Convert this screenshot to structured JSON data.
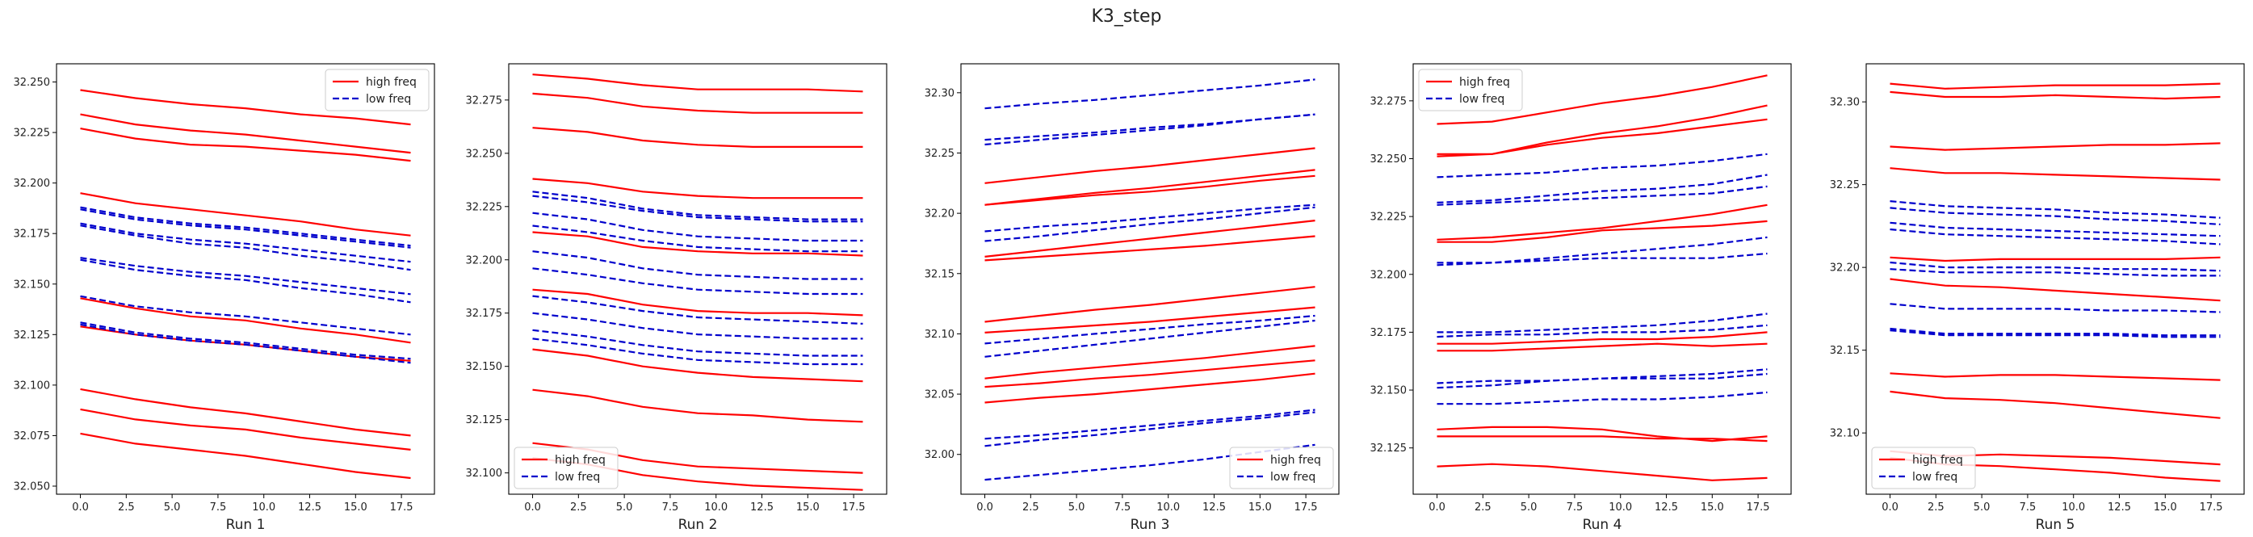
{
  "chart_data": {
    "type": "line",
    "title": "K3_step",
    "x": [
      0,
      3,
      6,
      9,
      12,
      15,
      18
    ],
    "xticks": [
      0.0,
      2.5,
      5.0,
      7.5,
      10.0,
      12.5,
      15.0,
      17.5
    ],
    "xtick_labels": [
      "0.0",
      "2.5",
      "5.0",
      "7.5",
      "10.0",
      "12.5",
      "15.0",
      "17.5"
    ],
    "xlim": [
      -1.3,
      19.3
    ],
    "legend_labels": {
      "high": "high freq",
      "low": "low freq"
    },
    "colors": {
      "high": "#ff0000",
      "low": "#0000cc",
      "axis": "#000000",
      "text": "#222222"
    },
    "panels": [
      {
        "xlabel": "Run 1",
        "ylim": [
          32.046,
          32.259
        ],
        "yticks": [
          32.05,
          32.075,
          32.1,
          32.125,
          32.15,
          32.175,
          32.2,
          32.225,
          32.25
        ],
        "ytick_labels": [
          "32.050",
          "32.075",
          "32.100",
          "32.125",
          "32.150",
          "32.175",
          "32.200",
          "32.225",
          "32.250"
        ],
        "legend_pos": "top-right",
        "high": [
          [
            32.246,
            32.242,
            32.239,
            32.237,
            32.234,
            32.232,
            32.229
          ],
          [
            32.234,
            32.229,
            32.226,
            32.224,
            32.221,
            32.218,
            32.215
          ],
          [
            32.227,
            32.222,
            32.219,
            32.218,
            32.216,
            32.214,
            32.211
          ],
          [
            32.195,
            32.19,
            32.187,
            32.184,
            32.181,
            32.177,
            32.174
          ],
          [
            32.143,
            32.138,
            32.134,
            32.132,
            32.128,
            32.125,
            32.121
          ],
          [
            32.129,
            32.125,
            32.122,
            32.12,
            32.117,
            32.114,
            32.112
          ],
          [
            32.098,
            32.093,
            32.089,
            32.086,
            32.082,
            32.078,
            32.075
          ],
          [
            32.088,
            32.083,
            32.08,
            32.078,
            32.074,
            32.071,
            32.068
          ],
          [
            32.076,
            32.071,
            32.068,
            32.065,
            32.061,
            32.057,
            32.054
          ]
        ],
        "low": [
          [
            32.188,
            32.183,
            32.18,
            32.178,
            32.175,
            32.172,
            32.169
          ],
          [
            32.187,
            32.182,
            32.179,
            32.177,
            32.174,
            32.171,
            32.168
          ],
          [
            32.18,
            32.175,
            32.172,
            32.17,
            32.167,
            32.164,
            32.161
          ],
          [
            32.179,
            32.174,
            32.17,
            32.168,
            32.164,
            32.161,
            32.157
          ],
          [
            32.162,
            32.157,
            32.154,
            32.152,
            32.148,
            32.145,
            32.141
          ],
          [
            32.163,
            32.159,
            32.156,
            32.154,
            32.151,
            32.148,
            32.145
          ],
          [
            32.144,
            32.139,
            32.136,
            32.134,
            32.131,
            32.128,
            32.125
          ],
          [
            32.131,
            32.126,
            32.123,
            32.121,
            32.118,
            32.115,
            32.113
          ],
          [
            32.13,
            32.125,
            32.122,
            32.12,
            32.117,
            32.114,
            32.111
          ]
        ]
      },
      {
        "xlabel": "Run 2",
        "ylim": [
          32.09,
          32.292
        ],
        "yticks": [
          32.1,
          32.125,
          32.15,
          32.175,
          32.2,
          32.225,
          32.25,
          32.275
        ],
        "ytick_labels": [
          "32.100",
          "32.125",
          "32.150",
          "32.175",
          "32.200",
          "32.225",
          "32.250",
          "32.275"
        ],
        "legend_pos": "bottom-left",
        "high": [
          [
            32.287,
            32.285,
            32.282,
            32.28,
            32.28,
            32.28,
            32.279
          ],
          [
            32.278,
            32.276,
            32.272,
            32.27,
            32.269,
            32.269,
            32.269
          ],
          [
            32.262,
            32.26,
            32.256,
            32.254,
            32.253,
            32.253,
            32.253
          ],
          [
            32.238,
            32.236,
            32.232,
            32.23,
            32.229,
            32.229,
            32.229
          ],
          [
            32.213,
            32.211,
            32.206,
            32.204,
            32.203,
            32.203,
            32.202
          ],
          [
            32.186,
            32.184,
            32.179,
            32.176,
            32.175,
            32.175,
            32.174
          ],
          [
            32.158,
            32.155,
            32.15,
            32.147,
            32.145,
            32.144,
            32.143
          ],
          [
            32.139,
            32.136,
            32.131,
            32.128,
            32.127,
            32.125,
            32.124
          ],
          [
            32.114,
            32.111,
            32.106,
            32.103,
            32.102,
            32.101,
            32.1
          ],
          [
            32.107,
            32.104,
            32.099,
            32.096,
            32.094,
            32.093,
            32.092
          ]
        ],
        "low": [
          [
            32.232,
            32.229,
            32.224,
            32.221,
            32.22,
            32.219,
            32.219
          ],
          [
            32.23,
            32.227,
            32.223,
            32.22,
            32.219,
            32.218,
            32.218
          ],
          [
            32.222,
            32.219,
            32.214,
            32.211,
            32.21,
            32.209,
            32.209
          ],
          [
            32.216,
            32.213,
            32.209,
            32.206,
            32.205,
            32.204,
            32.204
          ],
          [
            32.204,
            32.201,
            32.196,
            32.193,
            32.192,
            32.191,
            32.191
          ],
          [
            32.196,
            32.193,
            32.189,
            32.186,
            32.185,
            32.184,
            32.184
          ],
          [
            32.183,
            32.18,
            32.176,
            32.173,
            32.172,
            32.171,
            32.17
          ],
          [
            32.175,
            32.172,
            32.168,
            32.165,
            32.164,
            32.163,
            32.163
          ],
          [
            32.167,
            32.164,
            32.16,
            32.157,
            32.156,
            32.155,
            32.155
          ],
          [
            32.163,
            32.16,
            32.156,
            32.153,
            32.152,
            32.151,
            32.151
          ]
        ]
      },
      {
        "xlabel": "Run 3",
        "ylim": [
          31.967,
          32.324
        ],
        "yticks": [
          32.0,
          32.05,
          32.1,
          32.15,
          32.2,
          32.25,
          32.3
        ],
        "ytick_labels": [
          "32.00",
          "32.05",
          "32.10",
          "32.15",
          "32.20",
          "32.25",
          "32.30"
        ],
        "legend_pos": "bottom-right",
        "high": [
          [
            32.225,
            32.23,
            32.235,
            32.239,
            32.244,
            32.249,
            32.254
          ],
          [
            32.207,
            32.212,
            32.217,
            32.221,
            32.226,
            32.231,
            32.236
          ],
          [
            32.207,
            32.211,
            32.215,
            32.218,
            32.222,
            32.227,
            32.231
          ],
          [
            32.164,
            32.169,
            32.174,
            32.179,
            32.184,
            32.189,
            32.194
          ],
          [
            32.161,
            32.164,
            32.167,
            32.17,
            32.173,
            32.177,
            32.181
          ],
          [
            32.11,
            32.115,
            32.12,
            32.124,
            32.129,
            32.134,
            32.139
          ],
          [
            32.101,
            32.104,
            32.107,
            32.11,
            32.114,
            32.118,
            32.122
          ],
          [
            32.063,
            32.068,
            32.072,
            32.076,
            32.08,
            32.085,
            32.09
          ],
          [
            32.056,
            32.059,
            32.063,
            32.066,
            32.07,
            32.074,
            32.078
          ],
          [
            32.043,
            32.047,
            32.05,
            32.054,
            32.058,
            32.062,
            32.067
          ]
        ],
        "low": [
          [
            32.287,
            32.291,
            32.294,
            32.298,
            32.302,
            32.306,
            32.311
          ],
          [
            32.261,
            32.264,
            32.267,
            32.271,
            32.274,
            32.278,
            32.282
          ],
          [
            32.257,
            32.261,
            32.265,
            32.269,
            32.273,
            32.278,
            32.282
          ],
          [
            32.185,
            32.189,
            32.192,
            32.196,
            32.2,
            32.204,
            32.207
          ],
          [
            32.177,
            32.181,
            32.186,
            32.191,
            32.195,
            32.2,
            32.205
          ],
          [
            32.092,
            32.096,
            32.1,
            32.104,
            32.108,
            32.111,
            32.115
          ],
          [
            32.081,
            32.086,
            32.091,
            32.096,
            32.101,
            32.106,
            32.111
          ],
          [
            32.013,
            32.016,
            32.02,
            32.024,
            32.028,
            32.032,
            32.037
          ],
          [
            32.007,
            32.012,
            32.016,
            32.021,
            32.026,
            32.03,
            32.035
          ],
          [
            31.979,
            31.983,
            31.987,
            31.991,
            31.996,
            32.002,
            32.008
          ]
        ]
      },
      {
        "xlabel": "Run 4",
        "ylim": [
          32.105,
          32.291
        ],
        "yticks": [
          32.125,
          32.15,
          32.175,
          32.2,
          32.225,
          32.25,
          32.275
        ],
        "ytick_labels": [
          "32.125",
          "32.150",
          "32.175",
          "32.200",
          "32.225",
          "32.250",
          "32.275"
        ],
        "legend_pos": "top-left",
        "high": [
          [
            32.265,
            32.266,
            32.27,
            32.274,
            32.277,
            32.281,
            32.286
          ],
          [
            32.251,
            32.252,
            32.257,
            32.261,
            32.264,
            32.268,
            32.273
          ],
          [
            32.252,
            32.252,
            32.256,
            32.259,
            32.261,
            32.264,
            32.267
          ],
          [
            32.215,
            32.216,
            32.218,
            32.22,
            32.223,
            32.226,
            32.23
          ],
          [
            32.214,
            32.214,
            32.216,
            32.219,
            32.22,
            32.221,
            32.223
          ],
          [
            32.17,
            32.17,
            32.171,
            32.172,
            32.172,
            32.173,
            32.175
          ],
          [
            32.167,
            32.167,
            32.168,
            32.169,
            32.17,
            32.169,
            32.17
          ],
          [
            32.133,
            32.134,
            32.134,
            32.133,
            32.13,
            32.128,
            32.13
          ],
          [
            32.13,
            32.13,
            32.13,
            32.13,
            32.129,
            32.129,
            32.128
          ],
          [
            32.117,
            32.118,
            32.117,
            32.115,
            32.113,
            32.111,
            32.112
          ]
        ],
        "low": [
          [
            32.242,
            32.243,
            32.244,
            32.246,
            32.247,
            32.249,
            32.252
          ],
          [
            32.231,
            32.232,
            32.234,
            32.236,
            32.237,
            32.239,
            32.243
          ],
          [
            32.23,
            32.231,
            32.232,
            32.233,
            32.234,
            32.235,
            32.238
          ],
          [
            32.205,
            32.205,
            32.207,
            32.209,
            32.211,
            32.213,
            32.216
          ],
          [
            32.204,
            32.205,
            32.206,
            32.207,
            32.207,
            32.207,
            32.209
          ],
          [
            32.175,
            32.175,
            32.176,
            32.177,
            32.178,
            32.18,
            32.183
          ],
          [
            32.173,
            32.174,
            32.174,
            32.175,
            32.175,
            32.176,
            32.178
          ],
          [
            32.153,
            32.154,
            32.154,
            32.155,
            32.156,
            32.157,
            32.159
          ],
          [
            32.151,
            32.152,
            32.154,
            32.155,
            32.155,
            32.155,
            32.157
          ],
          [
            32.144,
            32.144,
            32.145,
            32.146,
            32.146,
            32.147,
            32.149
          ]
        ]
      },
      {
        "xlabel": "Run 5",
        "ylim": [
          32.063,
          32.323
        ],
        "yticks": [
          32.1,
          32.15,
          32.2,
          32.25,
          32.3
        ],
        "ytick_labels": [
          "32.10",
          "32.15",
          "32.20",
          "32.25",
          "32.30"
        ],
        "legend_pos": "bottom-left",
        "high": [
          [
            32.311,
            32.308,
            32.309,
            32.31,
            32.31,
            32.31,
            32.311
          ],
          [
            32.306,
            32.303,
            32.303,
            32.304,
            32.303,
            32.302,
            32.303
          ],
          [
            32.273,
            32.271,
            32.272,
            32.273,
            32.274,
            32.274,
            32.275
          ],
          [
            32.26,
            32.257,
            32.257,
            32.256,
            32.255,
            32.254,
            32.253
          ],
          [
            32.206,
            32.204,
            32.205,
            32.205,
            32.205,
            32.205,
            32.206
          ],
          [
            32.193,
            32.189,
            32.188,
            32.186,
            32.184,
            32.182,
            32.18
          ],
          [
            32.136,
            32.134,
            32.135,
            32.135,
            32.134,
            32.133,
            32.132
          ],
          [
            32.125,
            32.121,
            32.12,
            32.118,
            32.115,
            32.112,
            32.109
          ],
          [
            32.089,
            32.086,
            32.087,
            32.086,
            32.085,
            32.083,
            32.081
          ],
          [
            32.085,
            32.081,
            32.08,
            32.078,
            32.076,
            32.073,
            32.071
          ]
        ],
        "low": [
          [
            32.24,
            32.237,
            32.236,
            32.235,
            32.233,
            32.232,
            32.23
          ],
          [
            32.236,
            32.233,
            32.232,
            32.231,
            32.229,
            32.228,
            32.226
          ],
          [
            32.227,
            32.224,
            32.223,
            32.222,
            32.221,
            32.22,
            32.219
          ],
          [
            32.223,
            32.22,
            32.219,
            32.218,
            32.217,
            32.216,
            32.214
          ],
          [
            32.203,
            32.2,
            32.2,
            32.2,
            32.199,
            32.199,
            32.198
          ],
          [
            32.199,
            32.197,
            32.197,
            32.197,
            32.196,
            32.195,
            32.195
          ],
          [
            32.178,
            32.175,
            32.175,
            32.175,
            32.174,
            32.174,
            32.173
          ],
          [
            32.163,
            32.16,
            32.16,
            32.16,
            32.16,
            32.159,
            32.159
          ],
          [
            32.162,
            32.159,
            32.159,
            32.159,
            32.159,
            32.158,
            32.158
          ]
        ]
      }
    ]
  }
}
